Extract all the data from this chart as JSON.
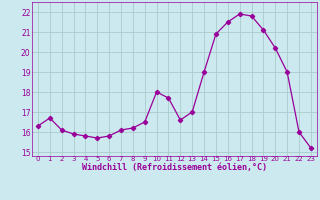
{
  "x": [
    0,
    1,
    2,
    3,
    4,
    5,
    6,
    7,
    8,
    9,
    10,
    11,
    12,
    13,
    14,
    15,
    16,
    17,
    18,
    19,
    20,
    21,
    22,
    23
  ],
  "y": [
    16.3,
    16.7,
    16.1,
    15.9,
    15.8,
    15.7,
    15.8,
    16.1,
    16.2,
    16.5,
    18.0,
    17.7,
    16.6,
    17.0,
    19.0,
    20.9,
    21.5,
    21.9,
    21.8,
    21.1,
    20.2,
    19.0,
    16.0,
    15.2
  ],
  "xlabel": "Windchill (Refroidissement éolien,°C)",
  "ylim": [
    14.8,
    22.5
  ],
  "xlim": [
    -0.5,
    23.5
  ],
  "yticks": [
    15,
    16,
    17,
    18,
    19,
    20,
    21,
    22
  ],
  "xticks": [
    0,
    1,
    2,
    3,
    4,
    5,
    6,
    7,
    8,
    9,
    10,
    11,
    12,
    13,
    14,
    15,
    16,
    17,
    18,
    19,
    20,
    21,
    22,
    23
  ],
  "line_color": "#990099",
  "marker": "D",
  "marker_size": 2.2,
  "bg_color": "#cce9ef",
  "grid_color": "#aacccc",
  "label_color": "#990099",
  "tick_color": "#990099"
}
